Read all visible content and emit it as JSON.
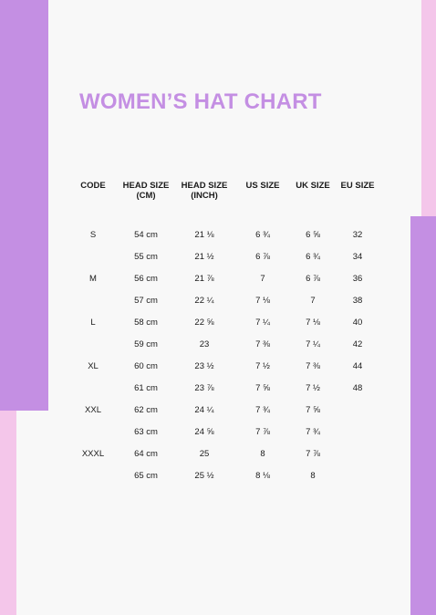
{
  "title": "WOMEN’S HAT CHART",
  "headers": [
    {
      "line1": "CODE",
      "line2": ""
    },
    {
      "line1": "HEAD SIZE",
      "line2": "(CM)"
    },
    {
      "line1": "HEAD SIZE",
      "line2": "(INCH)"
    },
    {
      "line1": "US SIZE",
      "line2": ""
    },
    {
      "line1": "UK SIZE",
      "line2": ""
    },
    {
      "line1": "EU SIZE",
      "line2": ""
    }
  ],
  "rows": [
    [
      "S",
      "54 cm",
      "21 ⅛",
      "6 ¾",
      "6 ⅝",
      "32"
    ],
    [
      "",
      "55 cm",
      "21 ½",
      "6 ⅞",
      "6 ¾",
      "34"
    ],
    [
      "M",
      "56 cm",
      "21 ⅞",
      "7",
      "6 ⅞",
      "36"
    ],
    [
      "",
      "57 cm",
      "22 ¼",
      "7 ⅛",
      "7",
      "38"
    ],
    [
      "L",
      "58 cm",
      "22 ⅝",
      "7 ¼",
      "7 ⅛",
      "40"
    ],
    [
      "",
      "59 cm",
      "23",
      "7 ⅜",
      "7 ¼",
      "42"
    ],
    [
      "XL",
      "60 cm",
      "23 ½",
      "7 ½",
      "7 ⅜",
      "44"
    ],
    [
      "",
      "61 cm",
      "23 ⅞",
      "7 ⅝",
      "7 ½",
      "48"
    ],
    [
      "XXL",
      "62 cm",
      "24 ¼",
      "7 ¾",
      "7 ⅝",
      ""
    ],
    [
      "",
      "63 cm",
      "24 ⅝",
      "7 ⅞",
      "7 ¾",
      ""
    ],
    [
      "XXXL",
      "64 cm",
      "25",
      "8",
      "7 ⅞",
      ""
    ],
    [
      "",
      "65 cm",
      "25 ½",
      "8 ⅛",
      "8",
      ""
    ]
  ]
}
